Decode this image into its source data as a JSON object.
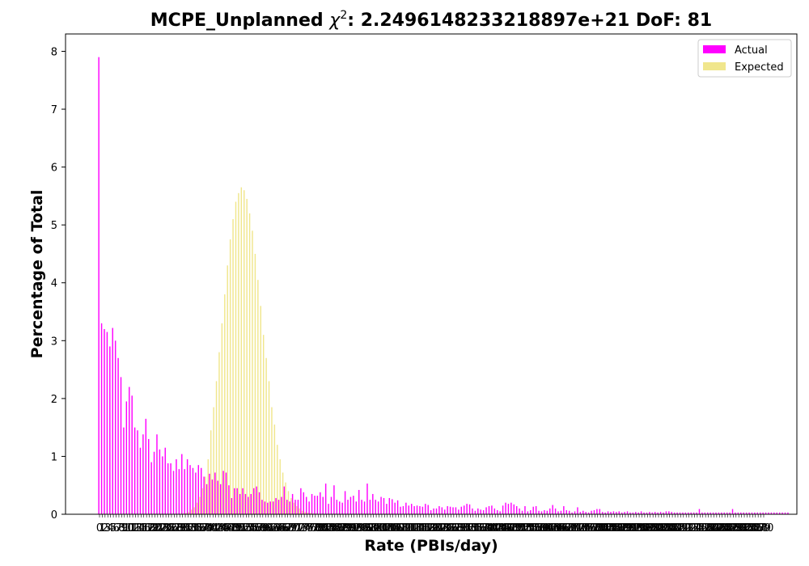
{
  "chart_data": {
    "type": "bar",
    "title": "MCPE_Unplanned χ²: 2.2496148233218897e+21 DoF: 81",
    "title_main": "MCPE_Unplanned ",
    "title_chi": "χ",
    "title_sup": "2",
    "title_rest": ": 2.2496148233218897e+21 DoF: 81",
    "xlabel": "Rate (PBIs/day)",
    "ylabel": "Percentage of Total",
    "ylim": [
      0,
      8.3
    ],
    "yticks": [
      0,
      1,
      2,
      3,
      4,
      5,
      6,
      7,
      8
    ],
    "x_start": 0,
    "x_tick_step": 1,
    "bar_count": 241,
    "series": [
      {
        "name": "Actual",
        "color": "#ff00ff",
        "values": [
          7.9,
          3.3,
          3.2,
          3.15,
          2.9,
          3.22,
          3.0,
          2.7,
          2.37,
          1.5,
          1.95,
          2.2,
          2.05,
          1.5,
          1.45,
          1.15,
          1.38,
          1.65,
          1.3,
          0.9,
          1.08,
          1.38,
          1.12,
          1.0,
          1.15,
          0.88,
          0.88,
          0.75,
          0.95,
          0.78,
          1.04,
          0.78,
          0.95,
          0.85,
          0.8,
          0.72,
          0.85,
          0.8,
          0.65,
          0.52,
          0.7,
          0.6,
          0.72,
          0.58,
          0.52,
          0.75,
          0.72,
          0.5,
          0.28,
          0.45,
          0.45,
          0.35,
          0.45,
          0.35,
          0.3,
          0.35,
          0.45,
          0.48,
          0.38,
          0.25,
          0.22,
          0.2,
          0.22,
          0.22,
          0.28,
          0.25,
          0.3,
          0.48,
          0.25,
          0.22,
          0.35,
          0.25,
          0.25,
          0.45,
          0.38,
          0.3,
          0.22,
          0.35,
          0.32,
          0.32,
          0.38,
          0.3,
          0.53,
          0.18,
          0.3,
          0.5,
          0.25,
          0.22,
          0.2,
          0.4,
          0.25,
          0.3,
          0.32,
          0.22,
          0.42,
          0.25,
          0.22,
          0.53,
          0.25,
          0.35,
          0.25,
          0.22,
          0.3,
          0.28,
          0.18,
          0.28,
          0.26,
          0.2,
          0.24,
          0.13,
          0.14,
          0.2,
          0.15,
          0.18,
          0.14,
          0.15,
          0.14,
          0.13,
          0.18,
          0.16,
          0.07,
          0.1,
          0.1,
          0.14,
          0.12,
          0.08,
          0.14,
          0.13,
          0.12,
          0.12,
          0.08,
          0.13,
          0.15,
          0.18,
          0.17,
          0.1,
          0.06,
          0.1,
          0.08,
          0.07,
          0.12,
          0.14,
          0.15,
          0.1,
          0.07,
          0.05,
          0.15,
          0.2,
          0.18,
          0.2,
          0.17,
          0.14,
          0.1,
          0.06,
          0.14,
          0.05,
          0.07,
          0.13,
          0.14,
          0.06,
          0.05,
          0.07,
          0.06,
          0.1,
          0.16,
          0.1,
          0.05,
          0.06,
          0.14,
          0.07,
          0.06,
          0.03,
          0.05,
          0.12,
          0.04,
          0.06,
          0.04,
          0.03,
          0.06,
          0.07,
          0.09,
          0.09,
          0.04,
          0.03,
          0.05,
          0.04,
          0.05,
          0.04,
          0.05,
          0.03,
          0.04,
          0.05,
          0.03,
          0.03,
          0.04,
          0.03,
          0.05,
          0.03,
          0.03,
          0.04,
          0.03,
          0.04,
          0.03,
          0.04,
          0.03,
          0.05,
          0.05,
          0.04,
          0.03,
          0.03,
          0.03,
          0.03,
          0.03,
          0.03,
          0.03,
          0.03,
          0.03,
          0.09,
          0.03,
          0.03,
          0.03,
          0.03,
          0.03,
          0.03,
          0.03,
          0.03,
          0.03,
          0.03,
          0.03,
          0.09,
          0.03,
          0.03,
          0.03,
          0.03,
          0.03,
          0.03,
          0.03,
          0.03,
          0.03,
          0.03,
          0.03,
          0.03,
          0.03,
          0.03,
          0.03,
          0.03,
          0.03,
          0.03,
          0.03,
          0.03
        ]
      },
      {
        "name": "Expected",
        "color": "#f0e68c",
        "values": [
          0,
          0,
          0,
          0,
          0,
          0,
          0,
          0,
          0,
          0,
          0,
          0,
          0,
          0,
          0,
          0,
          0,
          0,
          0,
          0,
          0,
          0,
          0,
          0,
          0,
          0,
          0,
          0,
          0,
          0,
          0.01,
          0.02,
          0.04,
          0.08,
          0.12,
          0.2,
          0.3,
          0.45,
          0.65,
          0.95,
          1.45,
          1.85,
          2.3,
          2.8,
          3.3,
          3.8,
          4.3,
          4.75,
          5.1,
          5.4,
          5.55,
          5.65,
          5.6,
          5.45,
          5.2,
          4.9,
          4.5,
          4.05,
          3.6,
          3.1,
          2.7,
          2.3,
          1.85,
          1.55,
          1.2,
          0.95,
          0.72,
          0.55,
          0.4,
          0.28,
          0.2,
          0.14,
          0.1,
          0.06,
          0.04,
          0.03,
          0.02,
          0.01,
          0.01,
          0,
          0,
          0,
          0,
          0,
          0,
          0,
          0,
          0,
          0,
          0,
          0,
          0,
          0,
          0,
          0,
          0,
          0,
          0,
          0,
          0,
          0,
          0,
          0,
          0,
          0,
          0,
          0,
          0,
          0,
          0,
          0,
          0,
          0,
          0,
          0,
          0,
          0,
          0,
          0,
          0,
          0,
          0,
          0,
          0,
          0,
          0,
          0,
          0,
          0,
          0,
          0,
          0,
          0,
          0,
          0,
          0,
          0,
          0,
          0,
          0,
          0,
          0,
          0,
          0,
          0,
          0,
          0,
          0,
          0,
          0,
          0,
          0,
          0,
          0,
          0,
          0,
          0,
          0,
          0,
          0,
          0,
          0,
          0,
          0,
          0,
          0,
          0,
          0,
          0,
          0,
          0,
          0,
          0,
          0,
          0,
          0,
          0,
          0,
          0,
          0,
          0,
          0,
          0,
          0,
          0,
          0,
          0,
          0,
          0,
          0,
          0,
          0,
          0,
          0,
          0,
          0,
          0,
          0,
          0,
          0,
          0,
          0,
          0,
          0,
          0,
          0,
          0,
          0,
          0,
          0,
          0,
          0,
          0,
          0,
          0,
          0,
          0,
          0,
          0,
          0,
          0,
          0,
          0,
          0,
          0,
          0,
          0,
          0,
          0,
          0,
          0,
          0,
          0,
          0,
          0,
          0,
          0,
          0,
          0,
          0,
          0,
          0,
          0,
          0,
          0,
          0,
          0,
          0,
          0,
          0,
          0,
          0,
          0,
          0,
          0,
          0,
          0,
          0
        ]
      }
    ],
    "legend": "top-right",
    "grid": false
  }
}
